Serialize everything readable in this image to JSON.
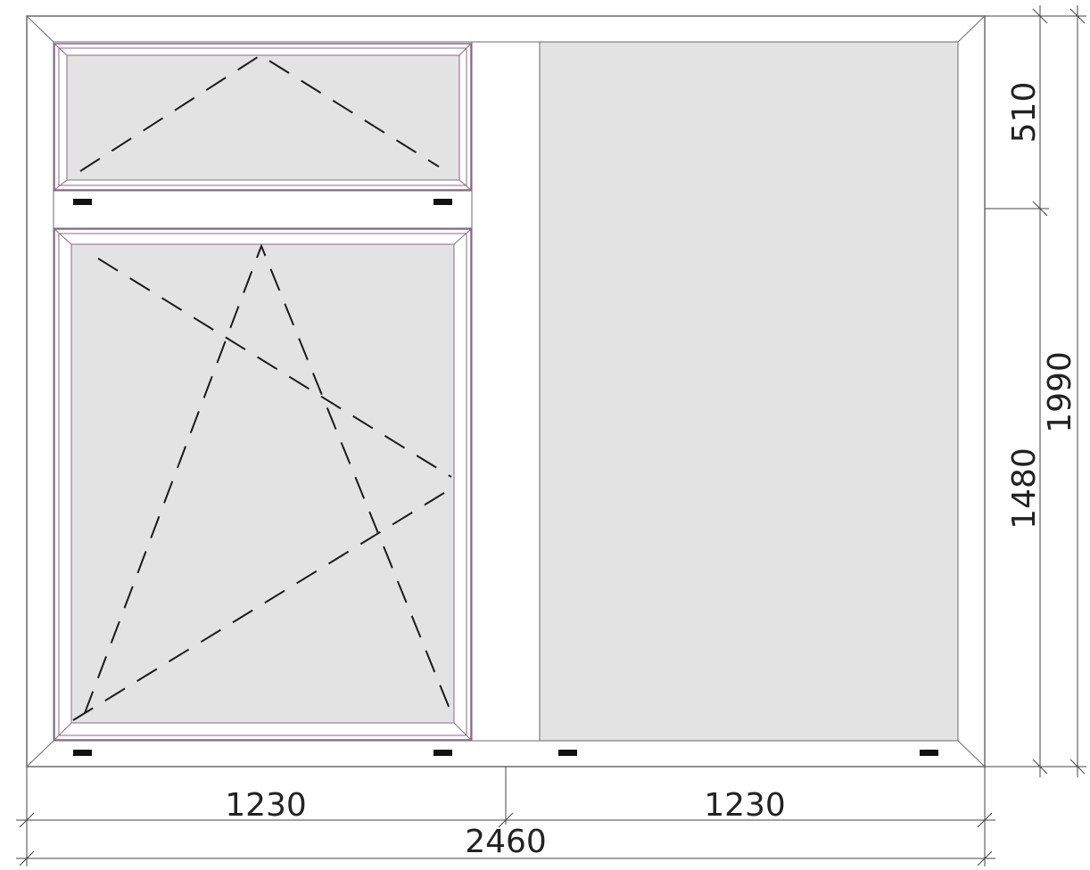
{
  "colors": {
    "frame_stroke": "#6b6b6b",
    "sash_stroke": "#8a6a85",
    "glass_fill": "#e3e3e3",
    "frame_fill": "#ffffff",
    "hinge_fill": "#111111",
    "dash_stroke": "#1a1a1a",
    "dimension_stroke": "#444444"
  },
  "dimensions": {
    "width_left": "1230",
    "width_right": "1230",
    "width_total": "2460",
    "height_top": "510",
    "height_bottom": "1480",
    "height_total": "1990"
  },
  "panes": [
    {
      "name": "transom",
      "opening": "tilt"
    },
    {
      "name": "left-sash",
      "opening": "tilt-turn"
    },
    {
      "name": "right-fixed",
      "opening": "fixed"
    }
  ]
}
